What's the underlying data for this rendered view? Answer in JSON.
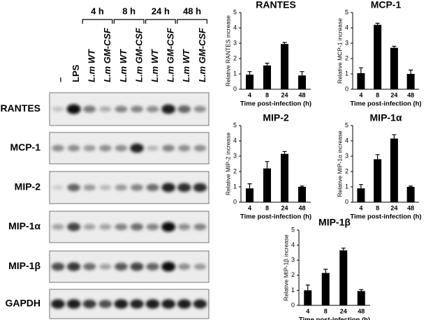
{
  "chart_data": [
    {
      "type": "bar",
      "title": "RANTES",
      "ylabel": "Relative RANTES increase",
      "xlabel": "Time post-infection (h)",
      "categories": [
        "4",
        "8",
        "24",
        "48"
      ],
      "values": [
        0.95,
        1.55,
        2.95,
        0.9
      ],
      "errors": [
        0.2,
        0.15,
        0.1,
        0.25
      ],
      "color": "#000000",
      "ylim": [
        0,
        5
      ],
      "yticks": [
        0,
        1,
        2,
        3,
        4,
        5
      ]
    },
    {
      "type": "bar",
      "title": "MCP-1",
      "ylabel": "Relative MCP-1 increase",
      "xlabel": "Time post-infection (h)",
      "categories": [
        "4",
        "8",
        "24",
        "48"
      ],
      "values": [
        1.05,
        4.2,
        2.7,
        1.0
      ],
      "errors": [
        0.35,
        0.1,
        0.1,
        0.25
      ],
      "color": "#000000",
      "ylim": [
        0,
        5
      ],
      "yticks": [
        0,
        1,
        2,
        3,
        4,
        5
      ]
    },
    {
      "type": "bar",
      "title": "MIP-2",
      "ylabel": "Relative MIP-2 increase",
      "xlabel": "Time post-infection (h)",
      "categories": [
        "4",
        "8",
        "24",
        "48"
      ],
      "values": [
        0.9,
        2.2,
        3.15,
        1.0
      ],
      "errors": [
        0.3,
        0.45,
        0.15,
        0.05
      ],
      "color": "#000000",
      "ylim": [
        0,
        5
      ],
      "yticks": [
        0,
        1,
        2,
        3,
        4,
        5
      ]
    },
    {
      "type": "bar",
      "title": "MIP-1α",
      "ylabel": "Relative MIP-1α increase",
      "xlabel": "Time post-infection (h)",
      "categories": [
        "4",
        "8",
        "24",
        "48"
      ],
      "values": [
        0.9,
        2.8,
        4.15,
        1.0
      ],
      "errors": [
        0.25,
        0.3,
        0.25,
        0.05
      ],
      "color": "#000000",
      "ylim": [
        0,
        5
      ],
      "yticks": [
        0,
        1,
        2,
        3,
        4,
        5
      ]
    },
    {
      "type": "bar",
      "title": "MIP-1β",
      "ylabel": "Relative MIP-1β increase",
      "xlabel": "Time post-infection (h)",
      "categories": [
        "4",
        "8",
        "24",
        "48"
      ],
      "values": [
        1.0,
        2.15,
        3.65,
        0.95
      ],
      "errors": [
        0.35,
        0.25,
        0.15,
        0.1
      ],
      "color": "#000000",
      "ylim": [
        0,
        5
      ],
      "yticks": [
        0,
        1,
        2,
        3,
        4,
        5
      ]
    }
  ],
  "blot": {
    "time_groups": [
      "4 h",
      "8 h",
      "24 h",
      "48 h"
    ],
    "lanes": [
      "–",
      "LPS",
      "L.m WT",
      "L.m GM-CSF",
      "L.m WT",
      "L.m GM-CSF",
      "L.m WT",
      "L.m GM-CSF",
      "L.m WT",
      "L.m GM-CSF"
    ],
    "rows": [
      "RANTES",
      "MCP-1",
      "MIP-2",
      "MIP-1α",
      "MIP-1β",
      "GAPDH"
    ]
  }
}
